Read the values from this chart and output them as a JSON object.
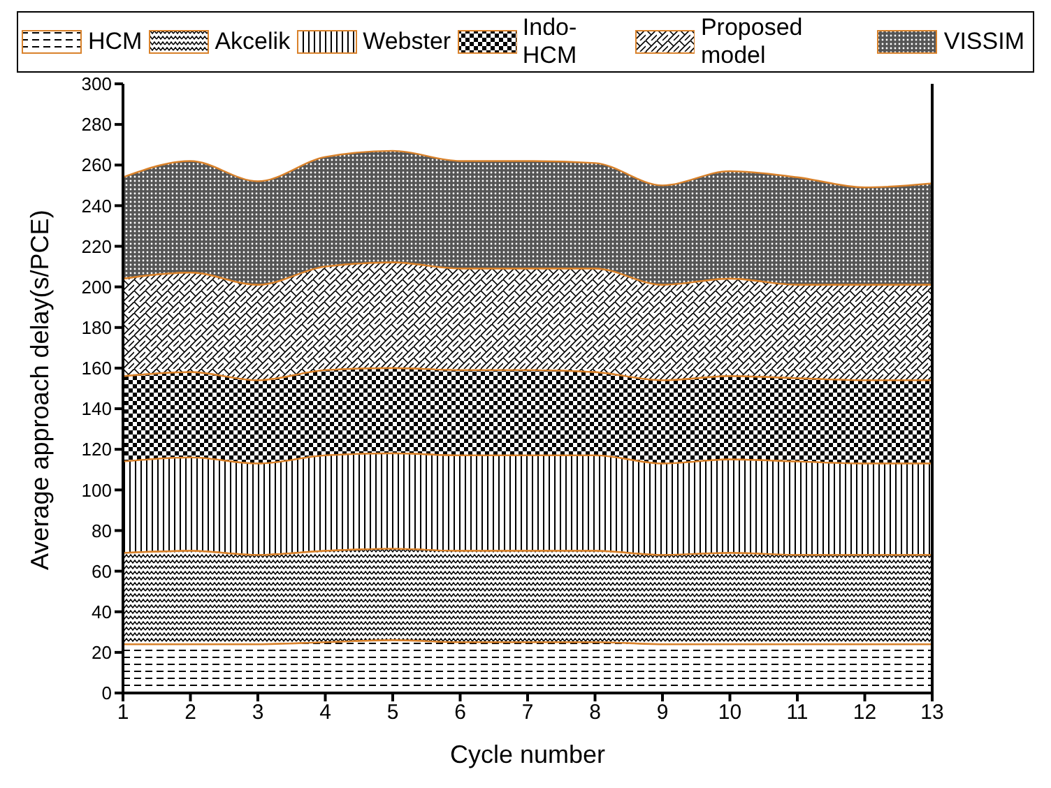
{
  "chart_data": {
    "type": "area",
    "stacked": true,
    "xlabel": "Cycle number",
    "ylabel": "Average approach delay(s/PCE)",
    "x": [
      1,
      2,
      3,
      4,
      5,
      6,
      7,
      8,
      9,
      10,
      11,
      12,
      13
    ],
    "xlim": [
      1,
      13
    ],
    "xticks": [
      1,
      2,
      3,
      4,
      5,
      6,
      7,
      8,
      9,
      10,
      11,
      12,
      13
    ],
    "ylim": [
      0,
      300
    ],
    "yticks": [
      0,
      20,
      40,
      60,
      80,
      100,
      120,
      140,
      160,
      180,
      200,
      220,
      240,
      260,
      280,
      300
    ],
    "grid": false,
    "legend": "top",
    "series": [
      {
        "name": "HCM",
        "color": "#000000",
        "values": [
          24,
          24,
          24,
          25,
          26,
          25,
          25,
          25,
          24,
          24,
          24,
          24,
          24
        ]
      },
      {
        "name": "Akcelik",
        "color": "#000000",
        "values": [
          45,
          46,
          44,
          45,
          45,
          45,
          45,
          45,
          44,
          45,
          44,
          44,
          44
        ]
      },
      {
        "name": "Webster",
        "color": "#000000",
        "values": [
          45,
          46,
          45,
          47,
          47,
          47,
          47,
          47,
          45,
          46,
          46,
          45,
          45
        ]
      },
      {
        "name": "Indo-HCM",
        "color": "#000000",
        "values": [
          42,
          42,
          41,
          42,
          42,
          42,
          42,
          41,
          41,
          41,
          41,
          41,
          41
        ]
      },
      {
        "name": "Proposed model",
        "color": "#000000",
        "values": [
          48,
          49,
          47,
          51,
          52,
          50,
          50,
          51,
          47,
          48,
          46,
          47,
          47
        ]
      },
      {
        "name": "VISSIM",
        "color": "#555555",
        "values": [
          50,
          55,
          51,
          54,
          55,
          53,
          53,
          52,
          49,
          53,
          53,
          48,
          50
        ]
      }
    ]
  }
}
